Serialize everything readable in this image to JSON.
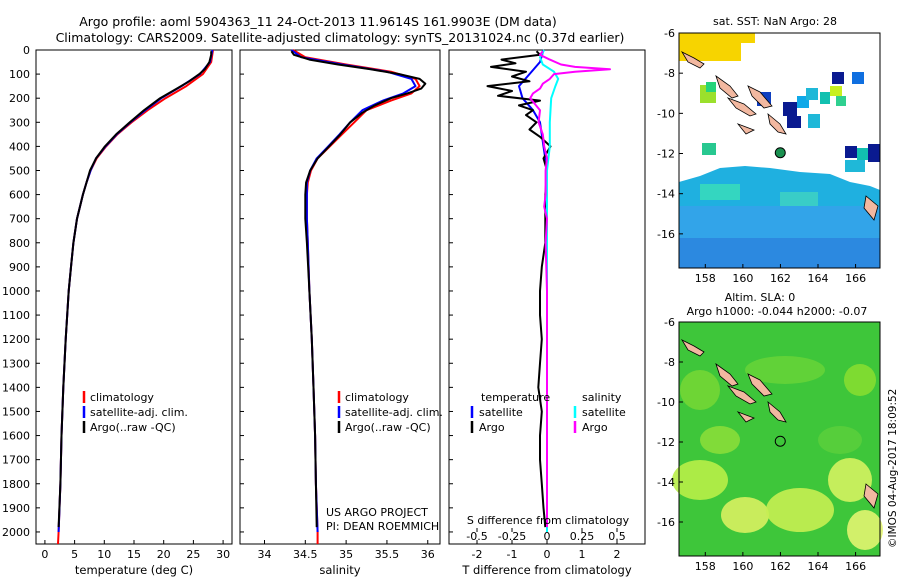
{
  "header": {
    "line1": "Argo profile: aoml 5904363_11 24-Oct-2013 11.9614S 161.9903E (DM data)",
    "line2": "Climatology: CARS2009. Satellite-adjusted climatology: synTS_20131024.nc (0.37d earlier)"
  },
  "colors": {
    "climatology": "#ff0000",
    "satellite": "#0000ff",
    "argo": "#000000",
    "salinity_satellite": "#00ffff",
    "salinity_argo": "#ff00ff"
  },
  "depth_axis": {
    "ylim": [
      0,
      2050
    ],
    "ticks": [
      0,
      100,
      200,
      300,
      400,
      500,
      600,
      700,
      800,
      900,
      1000,
      1100,
      1200,
      1300,
      1400,
      1500,
      1600,
      1700,
      1800,
      1900,
      2000
    ],
    "tick_labels": [
      "0",
      "100",
      "200",
      "300",
      "400",
      "500",
      "600",
      "700",
      "800",
      "900",
      "1000",
      "1100",
      "1200",
      "1300",
      "1400",
      "1500",
      "1600",
      "1700",
      "1800",
      "1900",
      "2000"
    ]
  },
  "legend": {
    "climatology": "climatology",
    "satellite_adj": "satellite-adj. clim.",
    "argo_raw": "Argo(..raw -QC)"
  },
  "diff_legend": {
    "temperature": "temperature",
    "salinity": "salinity",
    "satellite": "satellite",
    "argo": "Argo"
  },
  "credits": {
    "line1": "US ARGO PROJECT",
    "line2": "PI: DEAN ROEMMICH"
  },
  "sst_map": {
    "title": "sat. SST: NaN Argo: 28",
    "x_ticks": [
      "158",
      "160",
      "162",
      "164",
      "166"
    ],
    "y_ticks": [
      "-6",
      "-8",
      "-10",
      "-12",
      "-14",
      "-16"
    ]
  },
  "sla_map": {
    "title1": "Altim. SLA: 0",
    "title2": "Argo h1000: -0.044 h2000: -0.07",
    "x_ticks": [
      "158",
      "160",
      "162",
      "164",
      "166"
    ],
    "y_ticks": [
      "-6",
      "-8",
      "-10",
      "-12",
      "-14",
      "-16"
    ]
  },
  "float_position": {
    "lon": 161.9903,
    "lat": -11.9614
  },
  "imos_stamp": "©IMOS 04-Aug-2017 18:09:52",
  "chart_data": [
    {
      "type": "line",
      "title": "",
      "xlabel": "temperature (deg C)",
      "ylabel": "",
      "xlim": [
        -1.5,
        31.5
      ],
      "x_ticks": [
        0,
        5,
        10,
        15,
        20,
        25,
        30
      ],
      "x_tick_labels": [
        "0",
        "5",
        "10",
        "15",
        "20",
        "25",
        "30"
      ],
      "series": [
        {
          "name": "climatology",
          "depth": [
            0,
            50,
            100,
            150,
            200,
            250,
            300,
            350,
            400,
            450,
            500,
            550,
            600,
            700,
            800,
            900,
            1000,
            1200,
            1400,
            1600,
            1800,
            2000,
            2050
          ],
          "values": [
            28.3,
            28.0,
            26.6,
            23.8,
            20.3,
            17.3,
            14.6,
            12.2,
            10.3,
            8.7,
            7.7,
            7.0,
            6.4,
            5.4,
            4.8,
            4.4,
            4.0,
            3.5,
            3.1,
            2.8,
            2.6,
            2.3,
            2.2
          ]
        },
        {
          "name": "satellite-adj. clim.",
          "depth": [
            0,
            50,
            100,
            150,
            200,
            250,
            300,
            350,
            400,
            450,
            500,
            550,
            600,
            700,
            800,
            900,
            1000,
            1200,
            1400,
            1600,
            1800,
            2000
          ],
          "values": [
            28.2,
            27.8,
            26.1,
            23.0,
            19.6,
            16.9,
            14.4,
            12.1,
            10.2,
            8.6,
            7.7,
            7.0,
            6.4,
            5.4,
            4.8,
            4.4,
            4.0,
            3.5,
            3.1,
            2.8,
            2.6,
            2.3
          ]
        },
        {
          "name": "Argo(..raw -QC)",
          "depth": [
            5,
            20,
            50,
            80,
            100,
            130,
            160,
            200,
            250,
            300,
            350,
            400,
            450,
            500,
            550,
            600,
            700,
            800,
            900,
            1000,
            1200,
            1400,
            1600,
            1800,
            1980
          ],
          "values": [
            28.0,
            28.0,
            27.7,
            26.9,
            26.0,
            24.3,
            22.2,
            19.4,
            16.7,
            14.3,
            12.0,
            10.1,
            8.6,
            7.6,
            7.0,
            6.4,
            5.4,
            4.8,
            4.4,
            4.0,
            3.5,
            3.1,
            2.8,
            2.6,
            2.3
          ]
        }
      ]
    },
    {
      "type": "line",
      "title": "",
      "xlabel": "salinity",
      "ylabel": "",
      "xlim": [
        33.7,
        36.15
      ],
      "x_ticks": [
        34,
        34.5,
        35,
        35.5,
        36
      ],
      "x_tick_labels": [
        "34",
        "34.5",
        "35",
        "35.5",
        "36"
      ],
      "series": [
        {
          "name": "climatology",
          "depth": [
            0,
            30,
            60,
            90,
            120,
            150,
            180,
            210,
            250,
            300,
            350,
            400,
            450,
            500,
            550,
            600,
            700,
            800,
            1000,
            1200,
            1400,
            1600,
            1800,
            2000,
            2050
          ],
          "values": [
            34.35,
            34.5,
            35.0,
            35.55,
            35.85,
            35.9,
            35.8,
            35.55,
            35.25,
            35.1,
            34.95,
            34.8,
            34.65,
            34.57,
            34.53,
            34.52,
            34.52,
            34.53,
            34.55,
            34.58,
            34.6,
            34.62,
            34.63,
            34.65,
            34.65
          ]
        },
        {
          "name": "satellite-adj. clim.",
          "depth": [
            0,
            30,
            60,
            90,
            120,
            150,
            180,
            210,
            250,
            300,
            350,
            400,
            450,
            500,
            550,
            600,
            700,
            800,
            1000,
            1200,
            1400,
            1600,
            1800,
            2000
          ],
          "values": [
            34.33,
            34.45,
            34.95,
            35.5,
            35.8,
            35.85,
            35.7,
            35.45,
            35.2,
            35.05,
            34.92,
            34.78,
            34.64,
            34.56,
            34.52,
            34.52,
            34.52,
            34.53,
            34.55,
            34.58,
            34.6,
            34.62,
            34.63,
            34.65
          ]
        },
        {
          "name": "Argo(..raw -QC)",
          "depth": [
            5,
            20,
            40,
            60,
            80,
            100,
            120,
            140,
            160,
            180,
            200,
            230,
            260,
            300,
            350,
            400,
            450,
            500,
            550,
            600,
            700,
            800,
            1000,
            1200,
            1400,
            1600,
            1800,
            1980
          ],
          "values": [
            34.33,
            34.36,
            34.55,
            34.9,
            35.3,
            35.65,
            35.9,
            35.97,
            35.92,
            35.75,
            35.55,
            35.35,
            35.2,
            35.05,
            34.93,
            34.79,
            34.65,
            34.56,
            34.51,
            34.5,
            34.5,
            34.52,
            34.55,
            34.58,
            34.6,
            34.62,
            34.63,
            34.64
          ]
        }
      ]
    },
    {
      "type": "line",
      "title": "",
      "xlabel": "T difference from climatology",
      "xlabel_top": "S difference from climatology",
      "ylabel": "",
      "xlim": [
        -2.8,
        2.8
      ],
      "x_ticks": [
        -2,
        -1,
        0,
        1,
        2
      ],
      "x_tick_labels": [
        "-2",
        "-1",
        "0",
        "1",
        "2"
      ],
      "s_ticks": [
        -0.5,
        -0.25,
        0,
        0.25,
        0.5
      ],
      "s_tick_labels": [
        "-0.5",
        "-0.25",
        "0",
        "0.25",
        "0.5"
      ],
      "s_scale": 4,
      "series": [
        {
          "name": "temperature satellite",
          "variable": "T",
          "depth": [
            0,
            50,
            100,
            150,
            200,
            250,
            300,
            400,
            500,
            600,
            800,
            1000,
            1500,
            2000
          ],
          "values": [
            -0.1,
            -0.2,
            -0.5,
            -0.8,
            -0.7,
            -0.4,
            -0.2,
            -0.1,
            0.0,
            0.0,
            0.0,
            0.0,
            0.0,
            0.0
          ]
        },
        {
          "name": "temperature Argo",
          "variable": "T",
          "depth": [
            5,
            20,
            40,
            55,
            70,
            90,
            110,
            130,
            150,
            170,
            190,
            210,
            230,
            250,
            270,
            300,
            330,
            360,
            400,
            450,
            500,
            600,
            700,
            800,
            900,
            1000,
            1100,
            1200,
            1300,
            1400,
            1500,
            1600,
            1700,
            1800,
            1900,
            1980
          ],
          "values": [
            -0.3,
            -0.2,
            -1.3,
            -0.9,
            -1.6,
            -0.6,
            -1.0,
            -0.5,
            -1.7,
            -1.0,
            -1.4,
            -0.2,
            -0.8,
            -0.4,
            -0.6,
            -0.3,
            -0.5,
            -0.2,
            0.1,
            -0.1,
            0.0,
            -0.05,
            -0.05,
            -0.05,
            -0.15,
            -0.2,
            -0.2,
            -0.15,
            -0.2,
            -0.25,
            -0.15,
            -0.2,
            -0.2,
            -0.15,
            -0.1,
            -0.05
          ]
        },
        {
          "name": "salinity satellite",
          "variable": "S",
          "depth": [
            0,
            30,
            60,
            90,
            120,
            150,
            200,
            300,
            400,
            500,
            600,
            800,
            1000,
            1500,
            2000
          ],
          "values": [
            -0.02,
            -0.05,
            -0.03,
            0.05,
            0.08,
            0.06,
            0.03,
            0.02,
            0.02,
            0.0,
            0.0,
            0.0,
            0.0,
            0.0,
            0.0
          ]
        },
        {
          "name": "salinity Argo",
          "variable": "S",
          "depth": [
            5,
            20,
            40,
            60,
            70,
            80,
            90,
            100,
            120,
            140,
            160,
            180,
            200,
            250,
            300,
            350,
            400,
            450,
            500,
            600,
            650,
            700,
            800,
            1000,
            1200,
            1500,
            1800,
            1980
          ],
          "values": [
            -0.03,
            -0.05,
            0.02,
            0.1,
            0.2,
            0.45,
            0.2,
            0.05,
            0.02,
            -0.03,
            -0.05,
            -0.1,
            -0.12,
            -0.05,
            -0.06,
            -0.03,
            -0.02,
            0.0,
            -0.01,
            -0.01,
            -0.02,
            0.0,
            -0.01,
            0.0,
            0.0,
            0.0,
            0.0,
            0.0
          ]
        }
      ]
    }
  ]
}
